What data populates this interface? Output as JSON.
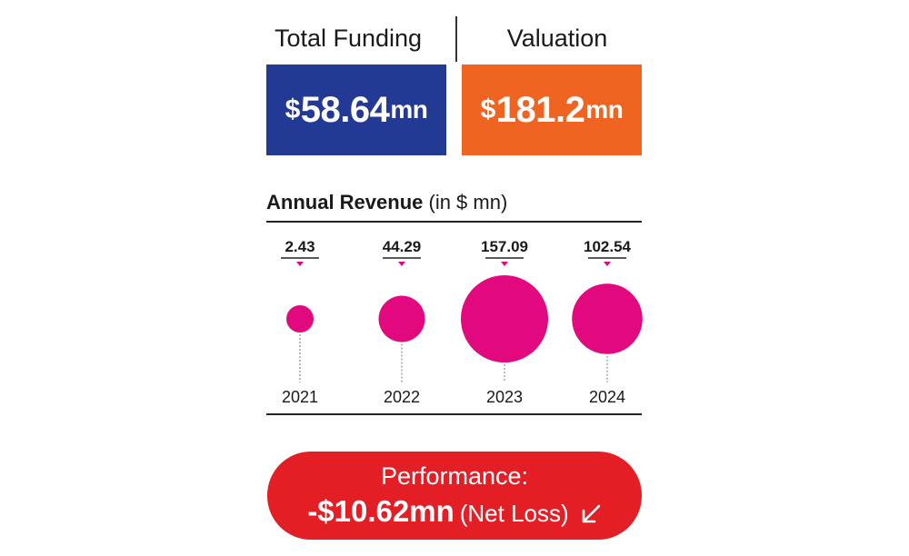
{
  "header": {
    "funding_label": "Total Funding",
    "valuation_label": "Valuation"
  },
  "funding": {
    "currency": "$",
    "amount": "58.64",
    "unit": "mn",
    "color": "#233a94"
  },
  "valuation": {
    "currency": "$",
    "amount": "181.2",
    "unit": "mn",
    "color": "#ef6420"
  },
  "revenue_title": {
    "bold": "Annual Revenue",
    "suffix": "(in $ mn)"
  },
  "chart_data": {
    "type": "bubble",
    "title": "Annual Revenue (in $ mn)",
    "categories": [
      "2021",
      "2022",
      "2023",
      "2024"
    ],
    "values": [
      2.43,
      44.29,
      157.09,
      102.54
    ],
    "value_labels": [
      "2.43",
      "44.29",
      "157.09",
      "102.54"
    ],
    "color": "#e2087e"
  },
  "performance": {
    "label": "Performance:",
    "value": "-$10.62mn",
    "note": "(Net Loss)",
    "icon": "arrow-down-left-icon",
    "color": "#e41e25"
  }
}
